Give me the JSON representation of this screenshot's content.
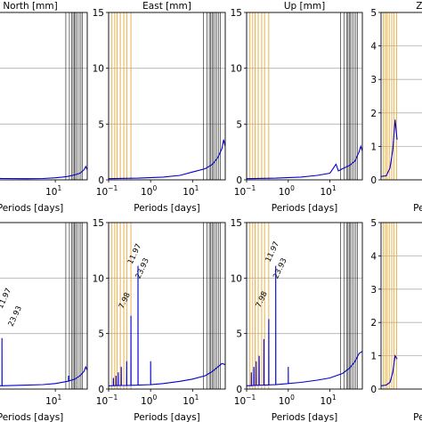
{
  "chart_data": [
    {
      "type": "line",
      "title": "North [mm]",
      "xlabel": "Periods [days]",
      "x_scale": "log",
      "xlim": [
        0.1,
        60
      ],
      "ylim": [
        0,
        15
      ],
      "x_ticks": [
        10
      ],
      "y_ticks": [],
      "grid_y": [
        5,
        10,
        15
      ],
      "series_color": "#0000cc",
      "curve": [
        [
          0.1,
          0.15
        ],
        [
          0.5,
          0.12
        ],
        [
          2,
          0.1
        ],
        [
          5,
          0.12
        ],
        [
          10,
          0.18
        ],
        [
          15,
          0.25
        ],
        [
          20,
          0.3
        ],
        [
          30,
          0.45
        ],
        [
          40,
          0.6
        ],
        [
          50,
          0.9
        ],
        [
          55,
          1.2
        ],
        [
          60,
          0.9
        ]
      ],
      "peaks": [],
      "annotations": []
    },
    {
      "type": "line",
      "title": "East [mm]",
      "xlabel": "Periods [days]",
      "x_scale": "log",
      "xlim": [
        0.1,
        60
      ],
      "ylim": [
        0,
        15
      ],
      "x_ticks": [
        0.1,
        1,
        10
      ],
      "y_ticks": [
        0,
        5,
        10,
        15
      ],
      "grid_y": [
        5,
        10,
        15
      ],
      "series_color": "#0000cc",
      "curve": [
        [
          0.1,
          0.1
        ],
        [
          0.5,
          0.15
        ],
        [
          2,
          0.25
        ],
        [
          5,
          0.4
        ],
        [
          10,
          0.7
        ],
        [
          20,
          1.0
        ],
        [
          30,
          1.4
        ],
        [
          40,
          2.0
        ],
        [
          50,
          2.8
        ],
        [
          55,
          3.6
        ],
        [
          60,
          3.0
        ]
      ],
      "peaks": [],
      "annotations": []
    },
    {
      "type": "line",
      "title": "Up [mm]",
      "xlabel": "Periods [days]",
      "x_scale": "log",
      "xlim": [
        0.1,
        60
      ],
      "ylim": [
        0,
        15
      ],
      "x_ticks": [
        0.1,
        1,
        10
      ],
      "y_ticks": [
        0,
        5,
        10,
        15
      ],
      "grid_y": [
        5,
        10,
        15
      ],
      "series_color": "#0000cc",
      "curve": [
        [
          0.1,
          0.1
        ],
        [
          0.5,
          0.15
        ],
        [
          2,
          0.25
        ],
        [
          5,
          0.4
        ],
        [
          10,
          0.6
        ],
        [
          14,
          1.4
        ],
        [
          16,
          0.8
        ],
        [
          20,
          1.0
        ],
        [
          30,
          1.3
        ],
        [
          40,
          1.7
        ],
        [
          50,
          2.5
        ],
        [
          55,
          3.0
        ],
        [
          60,
          2.6
        ]
      ],
      "peaks": [],
      "annotations": []
    },
    {
      "type": "line",
      "title": "ZT",
      "xlabel": "Peri",
      "x_scale": "log",
      "xlim": [
        0.1,
        60
      ],
      "ylim": [
        0,
        5
      ],
      "x_ticks": [],
      "y_ticks": [
        0,
        1,
        2,
        3,
        4,
        5
      ],
      "grid_y": [
        1,
        2,
        3,
        4,
        5
      ],
      "series_color": "#0000cc",
      "curve": [
        [
          0.1,
          0.1
        ],
        [
          0.15,
          0.12
        ],
        [
          0.2,
          0.35
        ],
        [
          0.25,
          0.9
        ],
        [
          0.3,
          1.8
        ],
        [
          0.35,
          1.2
        ]
      ],
      "peaks": [],
      "annotations": []
    },
    {
      "type": "line",
      "title": "",
      "xlabel": "Periods [days]",
      "x_scale": "log",
      "xlim": [
        0.1,
        60
      ],
      "ylim": [
        0,
        15
      ],
      "x_ticks": [
        10
      ],
      "y_ticks": [],
      "grid_y": [
        5,
        10,
        15
      ],
      "series_color": "#0000cc",
      "curve": [
        [
          0.1,
          0.3
        ],
        [
          0.5,
          0.3
        ],
        [
          2,
          0.35
        ],
        [
          5,
          0.4
        ],
        [
          10,
          0.5
        ],
        [
          20,
          0.7
        ],
        [
          30,
          0.9
        ],
        [
          40,
          1.2
        ],
        [
          50,
          1.6
        ],
        [
          55,
          2.0
        ],
        [
          60,
          1.7
        ]
      ],
      "peaks": [
        [
          0.5,
          4.6
        ],
        [
          21,
          1.2
        ]
      ],
      "annotations": [
        {
          "text": "11.97",
          "x": 0.5,
          "y": 7.2
        },
        {
          "text": "23.93",
          "x": 0.9,
          "y": 5.6
        }
      ]
    },
    {
      "type": "line",
      "title": "",
      "xlabel": "Periods [days]",
      "x_scale": "log",
      "xlim": [
        0.1,
        60
      ],
      "ylim": [
        0,
        15
      ],
      "x_ticks": [
        0.1,
        1,
        10
      ],
      "y_ticks": [
        0,
        5,
        10,
        15
      ],
      "grid_y": [
        5,
        10,
        15
      ],
      "series_color": "#0000cc",
      "curve": [
        [
          0.1,
          0.3
        ],
        [
          0.5,
          0.35
        ],
        [
          1,
          0.4
        ],
        [
          2,
          0.5
        ],
        [
          5,
          0.7
        ],
        [
          10,
          0.9
        ],
        [
          20,
          1.2
        ],
        [
          30,
          1.6
        ],
        [
          40,
          2.0
        ],
        [
          50,
          2.3
        ],
        [
          60,
          2.2
        ]
      ],
      "peaks": [
        [
          0.13,
          1.0
        ],
        [
          0.15,
          1.2
        ],
        [
          0.17,
          1.5
        ],
        [
          0.2,
          2.0
        ],
        [
          0.27,
          2.5
        ],
        [
          0.34,
          6.6
        ],
        [
          0.5,
          11.1
        ],
        [
          1.0,
          2.5
        ]
      ],
      "annotations": [
        {
          "text": "7.98",
          "x": 0.22,
          "y": 7.2
        },
        {
          "text": "11.97",
          "x": 0.36,
          "y": 11.2
        },
        {
          "text": "23.93",
          "x": 0.55,
          "y": 9.9
        }
      ]
    },
    {
      "type": "line",
      "title": "",
      "xlabel": "Periods [days]",
      "x_scale": "log",
      "xlim": [
        0.1,
        60
      ],
      "ylim": [
        0,
        15
      ],
      "x_ticks": [
        0.1,
        1,
        10
      ],
      "y_ticks": [
        0,
        5,
        10,
        15
      ],
      "grid_y": [
        5,
        10,
        15
      ],
      "series_color": "#0000cc",
      "curve": [
        [
          0.1,
          0.3
        ],
        [
          0.5,
          0.4
        ],
        [
          1,
          0.5
        ],
        [
          2,
          0.6
        ],
        [
          5,
          0.8
        ],
        [
          10,
          1.0
        ],
        [
          20,
          1.4
        ],
        [
          30,
          1.9
        ],
        [
          40,
          2.5
        ],
        [
          50,
          3.2
        ],
        [
          60,
          3.4
        ]
      ],
      "peaks": [
        [
          0.13,
          1.5
        ],
        [
          0.15,
          2.0
        ],
        [
          0.17,
          2.5
        ],
        [
          0.2,
          3.0
        ],
        [
          0.26,
          4.5
        ],
        [
          0.34,
          6.3
        ],
        [
          0.5,
          11.1
        ],
        [
          1.0,
          2.0
        ]
      ],
      "annotations": [
        {
          "text": "7.98",
          "x": 0.21,
          "y": 7.3
        },
        {
          "text": "11.97",
          "x": 0.36,
          "y": 11.4
        },
        {
          "text": "23.93",
          "x": 0.55,
          "y": 9.9
        }
      ]
    },
    {
      "type": "line",
      "title": "",
      "xlabel": "Peri",
      "x_scale": "log",
      "xlim": [
        0.1,
        60
      ],
      "ylim": [
        0,
        5
      ],
      "x_ticks": [],
      "y_ticks": [
        0,
        1,
        2,
        3,
        4,
        5
      ],
      "grid_y": [
        1,
        2,
        3,
        4,
        5
      ],
      "series_color": "#0000cc",
      "curve": [
        [
          0.1,
          0.1
        ],
        [
          0.15,
          0.12
        ],
        [
          0.2,
          0.2
        ],
        [
          0.25,
          0.5
        ],
        [
          0.3,
          1.0
        ],
        [
          0.35,
          0.9
        ]
      ],
      "peaks": [],
      "annotations": []
    }
  ],
  "vlines": {
    "orange": [
      0.12,
      0.14,
      0.16,
      0.19,
      0.23,
      0.27,
      0.34
    ],
    "dark": [
      18,
      22,
      25,
      27,
      29,
      31,
      34,
      38,
      42,
      46
    ],
    "orange_color": "#e8a838",
    "dark_color": "#333333"
  },
  "decade_label": "10",
  "decade_exponents": {
    "0.1": "−1",
    "1": "0",
    "10": "1"
  }
}
